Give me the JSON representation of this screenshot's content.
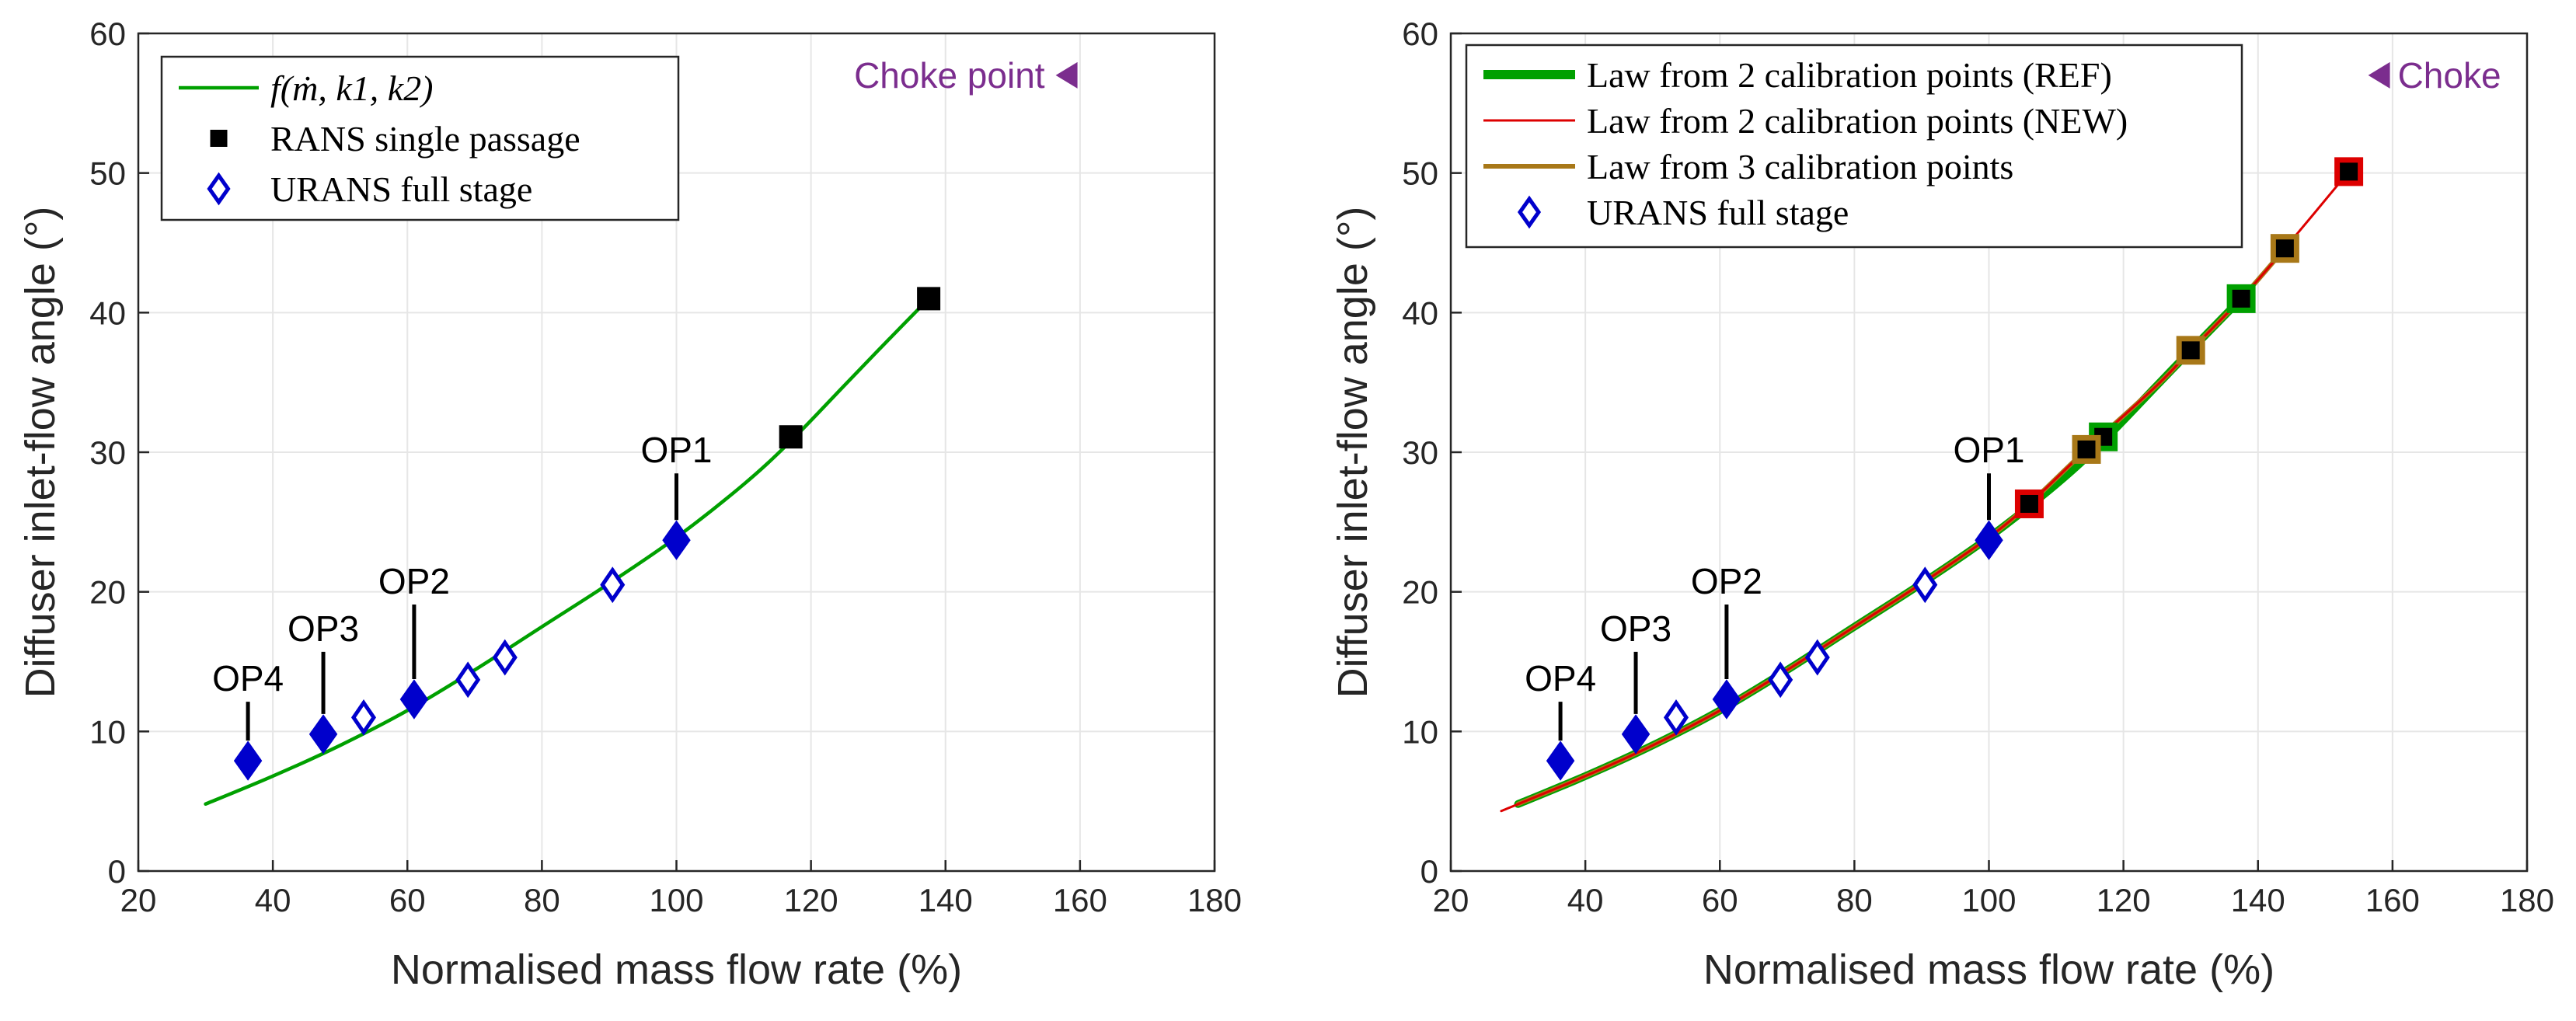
{
  "chart_data": [
    {
      "type": "line",
      "xlabel": "Normalised mass flow rate (%)",
      "ylabel": "Diffuser inlet-flow angle (°)",
      "xlim": [
        20,
        180
      ],
      "ylim": [
        0,
        60
      ],
      "xticks": [
        20,
        40,
        60,
        80,
        100,
        120,
        140,
        160,
        180
      ],
      "yticks": [
        0,
        10,
        20,
        30,
        40,
        50,
        60
      ],
      "grid": true,
      "legend_position": "top-left",
      "annotation": {
        "text": "Choke point",
        "color": "#7B2D8E",
        "marker": "left-triangle",
        "x": 158,
        "y": 57
      },
      "series": [
        {
          "name": "f(ṁ, k1, k2)",
          "kind": "line",
          "color": "#00A000",
          "x": [
            30,
            40,
            50,
            60,
            70,
            80,
            90,
            100,
            110,
            117,
            125,
            130,
            137.5
          ],
          "y": [
            4.8,
            6.8,
            9.0,
            11.5,
            14.4,
            17.5,
            20.6,
            23.9,
            27.7,
            30.8,
            34.8,
            37.3,
            41.0
          ]
        },
        {
          "name": "RANS single passage",
          "kind": "marker",
          "marker": "square",
          "color": "#000000",
          "x": [
            117,
            137.5
          ],
          "y": [
            31.1,
            41.0
          ]
        },
        {
          "name": "URANS full stage",
          "kind": "marker",
          "marker": "diamond-open",
          "color": "#0000CC",
          "x": [
            53.5,
            69,
            74.5,
            90.5
          ],
          "y": [
            11.0,
            13.7,
            15.3,
            20.5
          ]
        }
      ],
      "operating_points": [
        {
          "label": "OP1",
          "x": 100,
          "y": 23.7
        },
        {
          "label": "OP2",
          "x": 61,
          "y": 12.3
        },
        {
          "label": "OP3",
          "x": 47.5,
          "y": 9.8
        },
        {
          "label": "OP4",
          "x": 36.3,
          "y": 7.9
        }
      ]
    },
    {
      "type": "line",
      "xlabel": "Normalised mass flow rate (%)",
      "ylabel": "Diffuser inlet-flow angle (°)",
      "xlim": [
        20,
        180
      ],
      "ylim": [
        0,
        60
      ],
      "xticks": [
        20,
        40,
        60,
        80,
        100,
        120,
        140,
        160,
        180
      ],
      "yticks": [
        0,
        10,
        20,
        30,
        40,
        50,
        60
      ],
      "grid": true,
      "legend_position": "top-left",
      "annotation": {
        "text": "Choke",
        "color": "#7B2D8E",
        "marker": "left-triangle",
        "x": 158,
        "y": 57
      },
      "series": [
        {
          "name": "Law from 2 calibration points (REF)",
          "kind": "line",
          "color": "#00A000",
          "x": [
            30,
            40,
            50,
            60,
            70,
            80,
            90,
            100,
            110,
            117,
            125,
            130,
            137.5
          ],
          "y": [
            4.8,
            6.8,
            9.0,
            11.5,
            14.4,
            17.5,
            20.6,
            23.9,
            27.7,
            30.8,
            34.8,
            37.3,
            41.0
          ]
        },
        {
          "name": "Law from 2 calibration points (NEW)",
          "kind": "line",
          "color": "#DD0000",
          "x": [
            27.5,
            40,
            50,
            60,
            70,
            80,
            90,
            100,
            106,
            114.5,
            125,
            130,
            137.5,
            144,
            153.5
          ],
          "y": [
            4.3,
            6.8,
            9.0,
            11.5,
            14.4,
            17.5,
            20.6,
            23.9,
            26.3,
            30.2,
            34.8,
            37.3,
            41.0,
            44.6,
            50.1
          ]
        },
        {
          "name": "Law from 3 calibration points",
          "kind": "line",
          "color": "#A87818",
          "x": [
            30,
            40,
            50,
            60,
            70,
            80,
            90,
            100,
            106,
            114.5,
            125,
            130,
            137.5,
            144
          ],
          "y": [
            4.8,
            6.8,
            9.0,
            11.5,
            14.4,
            17.5,
            20.6,
            23.9,
            26.3,
            30.2,
            34.8,
            37.3,
            41.0,
            44.6
          ]
        },
        {
          "name": "URANS full stage",
          "kind": "marker",
          "marker": "diamond-open",
          "color": "#0000CC",
          "x": [
            53.5,
            69,
            74.5,
            90.5
          ],
          "y": [
            11.0,
            13.7,
            15.3,
            20.5
          ]
        }
      ],
      "calibration_points": [
        {
          "x": 117,
          "y": 31.1,
          "color": "#00A000"
        },
        {
          "x": 137.5,
          "y": 41.0,
          "color": "#00A000"
        },
        {
          "x": 106,
          "y": 26.3,
          "color": "#DD0000"
        },
        {
          "x": 153.5,
          "y": 50.1,
          "color": "#DD0000"
        },
        {
          "x": 114.5,
          "y": 30.2,
          "color": "#A87818"
        },
        {
          "x": 130,
          "y": 37.3,
          "color": "#A87818"
        },
        {
          "x": 144,
          "y": 44.6,
          "color": "#A87818"
        }
      ],
      "operating_points": [
        {
          "label": "OP1",
          "x": 100,
          "y": 23.7
        },
        {
          "label": "OP2",
          "x": 61,
          "y": 12.3
        },
        {
          "label": "OP3",
          "x": 47.5,
          "y": 9.8
        },
        {
          "label": "OP4",
          "x": 36.3,
          "y": 7.9
        }
      ]
    }
  ]
}
